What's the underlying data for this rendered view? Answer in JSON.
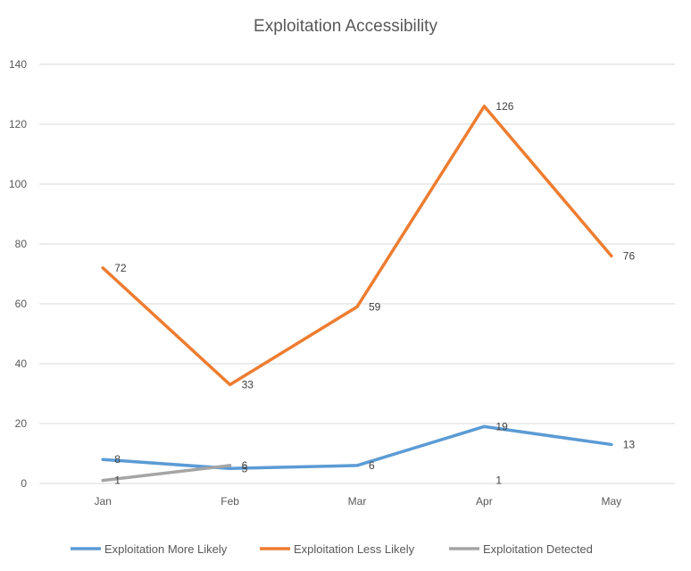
{
  "chart_data": {
    "type": "line",
    "title": "Exploitation Accessibility",
    "categories": [
      "Jan",
      "Feb",
      "Mar",
      "Apr",
      "May"
    ],
    "ylim": [
      0,
      140
    ],
    "yticks": [
      0,
      20,
      40,
      60,
      80,
      100,
      120,
      140
    ],
    "grid": true,
    "legend_position": "bottom",
    "series": [
      {
        "name": "Exploitation More Likely",
        "color": "#5b9bd5",
        "values": [
          8,
          5,
          6,
          19,
          13
        ],
        "labels": [
          "8",
          "5",
          "6",
          "19",
          "13"
        ]
      },
      {
        "name": "Exploitation Less Likely",
        "color": "#ed7d31",
        "values": [
          72,
          33,
          59,
          126,
          76
        ],
        "labels": [
          "72",
          "33",
          "59",
          "126",
          "76"
        ]
      },
      {
        "name": "Exploitation Detected",
        "color": "#a5a5a5",
        "values": [
          1,
          6,
          null,
          1,
          null
        ],
        "labels": [
          "1",
          "6",
          null,
          "1",
          null
        ]
      }
    ]
  }
}
